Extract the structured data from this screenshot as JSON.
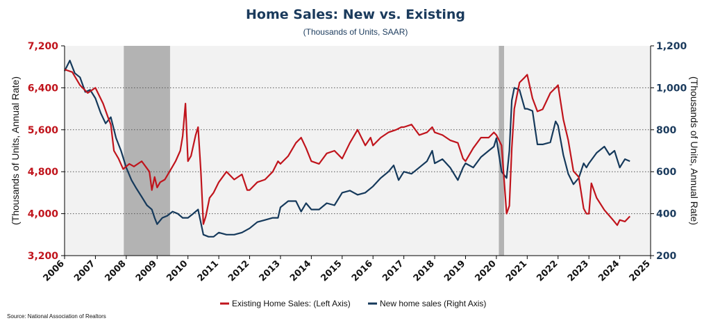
{
  "chart_data": {
    "type": "line",
    "title": "Home Sales: New vs. Existing",
    "subtitle": "(Thousands of Units, SAAR)",
    "ylabel_left": "(Thousands of Units, Annual Rate)",
    "ylabel_right": "(Thousands of Units, Annual Rate)",
    "source": "Source: National Association of Realtors",
    "x_ticks": [
      "2006",
      "2007",
      "2008",
      "2009",
      "2010",
      "2011",
      "2012",
      "2013",
      "2014",
      "2015",
      "2016",
      "2017",
      "2018",
      "2019",
      "2020",
      "2021",
      "2022",
      "2023",
      "2024",
      "2025"
    ],
    "xlim": [
      2006,
      2025
    ],
    "y_left": {
      "ticks": [
        "3,200",
        "4,000",
        "4,800",
        "5,600",
        "6,400",
        "7,200"
      ],
      "ylim": [
        3200,
        7200
      ]
    },
    "y_right": {
      "ticks": [
        "200",
        "400",
        "600",
        "800",
        "1,000",
        "1,200"
      ],
      "ylim": [
        200,
        1200
      ]
    },
    "grid": "horizontal dotted",
    "legend_position": "bottom-center",
    "recessions": [
      [
        2007.92,
        2009.42
      ],
      [
        2020.08,
        2020.25
      ]
    ],
    "series": [
      {
        "name": "Existing Home Sales: (Left Axis)",
        "axis": "left",
        "color": "#c0141c",
        "points": [
          [
            2006.0,
            6750
          ],
          [
            2006.25,
            6700
          ],
          [
            2006.5,
            6450
          ],
          [
            2006.75,
            6300
          ],
          [
            2007.0,
            6400
          ],
          [
            2007.25,
            6100
          ],
          [
            2007.4,
            5850
          ],
          [
            2007.5,
            5700
          ],
          [
            2007.6,
            5200
          ],
          [
            2007.75,
            5050
          ],
          [
            2007.9,
            4850
          ],
          [
            2008.0,
            4900
          ],
          [
            2008.1,
            4950
          ],
          [
            2008.25,
            4900
          ],
          [
            2008.5,
            5000
          ],
          [
            2008.75,
            4800
          ],
          [
            2008.83,
            4450
          ],
          [
            2008.92,
            4700
          ],
          [
            2009.0,
            4500
          ],
          [
            2009.1,
            4600
          ],
          [
            2009.25,
            4650
          ],
          [
            2009.5,
            4900
          ],
          [
            2009.6,
            5000
          ],
          [
            2009.75,
            5200
          ],
          [
            2009.83,
            5480
          ],
          [
            2009.92,
            6100
          ],
          [
            2010.0,
            5000
          ],
          [
            2010.1,
            5100
          ],
          [
            2010.25,
            5500
          ],
          [
            2010.33,
            5650
          ],
          [
            2010.42,
            4800
          ],
          [
            2010.5,
            3800
          ],
          [
            2010.58,
            3950
          ],
          [
            2010.7,
            4300
          ],
          [
            2010.83,
            4400
          ],
          [
            2011.0,
            4600
          ],
          [
            2011.25,
            4800
          ],
          [
            2011.5,
            4650
          ],
          [
            2011.75,
            4750
          ],
          [
            2011.92,
            4450
          ],
          [
            2012.0,
            4450
          ],
          [
            2012.25,
            4600
          ],
          [
            2012.5,
            4650
          ],
          [
            2012.75,
            4800
          ],
          [
            2012.92,
            5000
          ],
          [
            2013.0,
            4950
          ],
          [
            2013.25,
            5100
          ],
          [
            2013.5,
            5350
          ],
          [
            2013.67,
            5450
          ],
          [
            2013.83,
            5250
          ],
          [
            2014.0,
            5000
          ],
          [
            2014.25,
            4950
          ],
          [
            2014.5,
            5150
          ],
          [
            2014.75,
            5200
          ],
          [
            2015.0,
            5050
          ],
          [
            2015.25,
            5350
          ],
          [
            2015.5,
            5600
          ],
          [
            2015.75,
            5300
          ],
          [
            2015.92,
            5450
          ],
          [
            2016.0,
            5300
          ],
          [
            2016.25,
            5450
          ],
          [
            2016.5,
            5550
          ],
          [
            2016.75,
            5600
          ],
          [
            2016.92,
            5650
          ],
          [
            2017.0,
            5650
          ],
          [
            2017.25,
            5700
          ],
          [
            2017.5,
            5500
          ],
          [
            2017.75,
            5550
          ],
          [
            2017.92,
            5650
          ],
          [
            2018.0,
            5550
          ],
          [
            2018.25,
            5500
          ],
          [
            2018.5,
            5400
          ],
          [
            2018.75,
            5350
          ],
          [
            2018.92,
            5050
          ],
          [
            2019.0,
            5000
          ],
          [
            2019.25,
            5250
          ],
          [
            2019.5,
            5450
          ],
          [
            2019.75,
            5450
          ],
          [
            2019.92,
            5550
          ],
          [
            2020.0,
            5500
          ],
          [
            2020.17,
            5300
          ],
          [
            2020.33,
            4000
          ],
          [
            2020.42,
            4150
          ],
          [
            2020.5,
            5250
          ],
          [
            2020.58,
            6000
          ],
          [
            2020.75,
            6500
          ],
          [
            2020.92,
            6600
          ],
          [
            2021.0,
            6650
          ],
          [
            2021.17,
            6200
          ],
          [
            2021.33,
            5950
          ],
          [
            2021.5,
            5990
          ],
          [
            2021.75,
            6300
          ],
          [
            2021.92,
            6400
          ],
          [
            2022.0,
            6450
          ],
          [
            2022.17,
            5800
          ],
          [
            2022.33,
            5400
          ],
          [
            2022.5,
            4810
          ],
          [
            2022.67,
            4700
          ],
          [
            2022.83,
            4100
          ],
          [
            2022.92,
            4000
          ],
          [
            2023.0,
            4000
          ],
          [
            2023.08,
            4580
          ],
          [
            2023.25,
            4300
          ],
          [
            2023.5,
            4070
          ],
          [
            2023.75,
            3900
          ],
          [
            2023.92,
            3780
          ],
          [
            2024.0,
            3880
          ],
          [
            2024.17,
            3850
          ],
          [
            2024.33,
            3950
          ]
        ]
      },
      {
        "name": "New home sales (Right Axis)",
        "axis": "right",
        "color": "#15395b",
        "points": [
          [
            2006.0,
            1080
          ],
          [
            2006.17,
            1130
          ],
          [
            2006.33,
            1070
          ],
          [
            2006.5,
            1050
          ],
          [
            2006.67,
            980
          ],
          [
            2006.83,
            990
          ],
          [
            2007.0,
            950
          ],
          [
            2007.17,
            880
          ],
          [
            2007.33,
            830
          ],
          [
            2007.5,
            860
          ],
          [
            2007.67,
            760
          ],
          [
            2007.83,
            700
          ],
          [
            2008.0,
            620
          ],
          [
            2008.17,
            560
          ],
          [
            2008.33,
            520
          ],
          [
            2008.5,
            480
          ],
          [
            2008.67,
            440
          ],
          [
            2008.83,
            420
          ],
          [
            2008.92,
            380
          ],
          [
            2009.0,
            350
          ],
          [
            2009.17,
            380
          ],
          [
            2009.33,
            390
          ],
          [
            2009.5,
            410
          ],
          [
            2009.67,
            400
          ],
          [
            2009.83,
            380
          ],
          [
            2010.0,
            380
          ],
          [
            2010.17,
            400
          ],
          [
            2010.33,
            420
          ],
          [
            2010.5,
            300
          ],
          [
            2010.67,
            290
          ],
          [
            2010.83,
            290
          ],
          [
            2011.0,
            310
          ],
          [
            2011.25,
            300
          ],
          [
            2011.5,
            300
          ],
          [
            2011.75,
            310
          ],
          [
            2012.0,
            330
          ],
          [
            2012.25,
            360
          ],
          [
            2012.5,
            370
          ],
          [
            2012.75,
            380
          ],
          [
            2012.92,
            380
          ],
          [
            2013.0,
            430
          ],
          [
            2013.25,
            460
          ],
          [
            2013.5,
            460
          ],
          [
            2013.67,
            410
          ],
          [
            2013.83,
            450
          ],
          [
            2014.0,
            420
          ],
          [
            2014.25,
            420
          ],
          [
            2014.5,
            450
          ],
          [
            2014.75,
            440
          ],
          [
            2015.0,
            500
          ],
          [
            2015.25,
            510
          ],
          [
            2015.5,
            490
          ],
          [
            2015.75,
            500
          ],
          [
            2016.0,
            530
          ],
          [
            2016.25,
            570
          ],
          [
            2016.5,
            600
          ],
          [
            2016.67,
            630
          ],
          [
            2016.83,
            560
          ],
          [
            2017.0,
            600
          ],
          [
            2017.25,
            590
          ],
          [
            2017.5,
            620
          ],
          [
            2017.75,
            650
          ],
          [
            2017.92,
            700
          ],
          [
            2018.0,
            640
          ],
          [
            2018.25,
            660
          ],
          [
            2018.5,
            620
          ],
          [
            2018.75,
            560
          ],
          [
            2018.92,
            620
          ],
          [
            2019.0,
            640
          ],
          [
            2019.25,
            620
          ],
          [
            2019.5,
            670
          ],
          [
            2019.75,
            700
          ],
          [
            2019.92,
            720
          ],
          [
            2020.0,
            760
          ],
          [
            2020.17,
            600
          ],
          [
            2020.33,
            570
          ],
          [
            2020.42,
            700
          ],
          [
            2020.5,
            940
          ],
          [
            2020.58,
            1000
          ],
          [
            2020.75,
            990
          ],
          [
            2020.92,
            900
          ],
          [
            2021.0,
            900
          ],
          [
            2021.17,
            890
          ],
          [
            2021.33,
            730
          ],
          [
            2021.5,
            730
          ],
          [
            2021.75,
            740
          ],
          [
            2021.92,
            840
          ],
          [
            2022.0,
            820
          ],
          [
            2022.17,
            680
          ],
          [
            2022.33,
            590
          ],
          [
            2022.5,
            540
          ],
          [
            2022.67,
            570
          ],
          [
            2022.83,
            640
          ],
          [
            2022.92,
            620
          ],
          [
            2023.0,
            640
          ],
          [
            2023.25,
            690
          ],
          [
            2023.5,
            720
          ],
          [
            2023.67,
            680
          ],
          [
            2023.83,
            700
          ],
          [
            2024.0,
            620
          ],
          [
            2024.17,
            660
          ],
          [
            2024.33,
            650
          ]
        ]
      }
    ]
  }
}
